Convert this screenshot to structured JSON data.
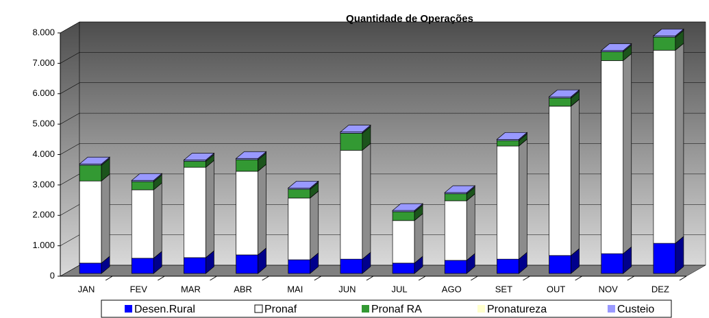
{
  "chart_data": {
    "type": "bar3d_stacked",
    "title": "Quantidade de Operações",
    "categories": [
      "JAN",
      "FEV",
      "MAR",
      "ABR",
      "MAI",
      "JUN",
      "JUL",
      "AGO",
      "SET",
      "OUT",
      "NOV",
      "DEZ"
    ],
    "series": [
      {
        "name": "Desen.Rural",
        "color": "#0000ff",
        "values": [
          340,
          500,
          520,
          610,
          450,
          470,
          340,
          430,
          470,
          590,
          650,
          990
        ]
      },
      {
        "name": "Pronaf",
        "color": "#ffffff",
        "values": [
          2700,
          2250,
          2970,
          2750,
          2030,
          3580,
          1400,
          1960,
          3720,
          4910,
          6350,
          6350
        ]
      },
      {
        "name": "Pronaf RA",
        "color": "#339933",
        "values": [
          520,
          270,
          200,
          380,
          290,
          560,
          290,
          230,
          180,
          270,
          290,
          430
        ]
      },
      {
        "name": "Pronatureza",
        "color": "#ffffcc",
        "values": [
          0,
          0,
          0,
          0,
          0,
          0,
          0,
          0,
          0,
          0,
          0,
          0
        ]
      },
      {
        "name": "Custeio",
        "color": "#9999ff",
        "values": [
          40,
          40,
          40,
          40,
          40,
          40,
          40,
          40,
          40,
          40,
          40,
          40
        ]
      }
    ],
    "ylim": [
      0,
      8000
    ],
    "yticks": [
      0,
      {
        "value": 1000,
        "label": "1.000"
      },
      {
        "value": 2000,
        "label": "2.000"
      },
      {
        "value": 3000,
        "label": "3.000"
      },
      {
        "value": 4000,
        "label": "4.000"
      },
      {
        "value": 5000,
        "label": "5.000"
      },
      {
        "value": 6000,
        "label": "6.000"
      },
      {
        "value": 7000,
        "label": "7.000"
      },
      {
        "value": 8000,
        "label": "8.000"
      }
    ],
    "grid": true
  }
}
